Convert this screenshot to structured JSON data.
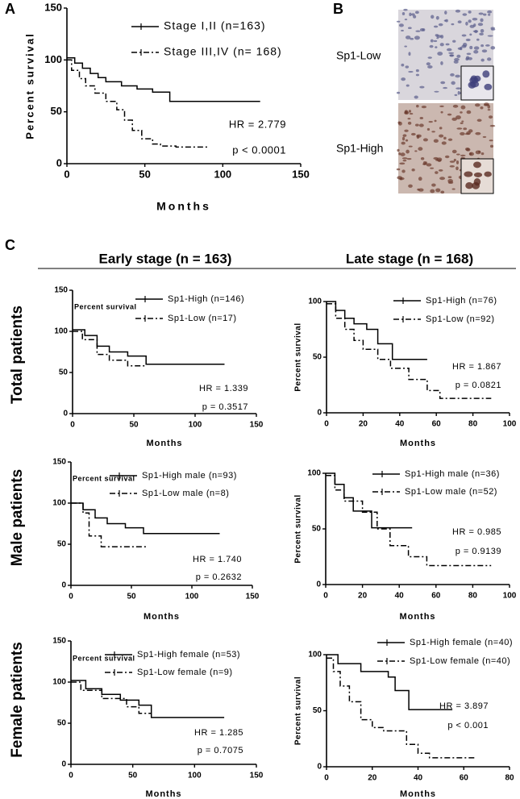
{
  "figure": {
    "panel_labels": [
      "A",
      "B",
      "C"
    ],
    "image_labels": [
      "Sp1-Low",
      "Sp1-High"
    ],
    "column_headers": [
      "Early stage (n = 163)",
      "Late stage (n = 168)"
    ],
    "row_labels": [
      "Total patients",
      "Male patients",
      "Female patients"
    ]
  },
  "chart_data": [
    {
      "type": "line",
      "x_label": "Months",
      "y_label": "Percent survival",
      "xlim": [
        0,
        150
      ],
      "xticks": [
        0,
        50,
        100,
        150
      ],
      "ylim": [
        0,
        150
      ],
      "yticks": [
        0,
        50,
        100,
        150
      ],
      "series": [
        {
          "name": "Stage I,II  (n=163)",
          "color": "#000000",
          "line_style": "solid",
          "x": [
            0,
            5,
            5,
            10,
            10,
            15,
            15,
            20,
            20,
            25,
            25,
            35,
            35,
            45,
            45,
            55,
            55,
            66,
            66,
            124
          ],
          "values": [
            102,
            102,
            97,
            97,
            92,
            92,
            87,
            87,
            83,
            83,
            79,
            79,
            75,
            75,
            72,
            72,
            69,
            69,
            60,
            60
          ]
        },
        {
          "name": "Stage III,IV  (n= 168)",
          "color": "#000000",
          "line_style": "dashdot",
          "x": [
            0,
            3,
            3,
            8,
            8,
            12,
            12,
            18,
            18,
            25,
            25,
            32,
            32,
            37,
            37,
            42,
            42,
            48,
            48,
            55,
            55,
            60,
            60,
            70,
            70,
            90
          ],
          "values": [
            100,
            100,
            90,
            90,
            82,
            82,
            75,
            75,
            68,
            68,
            60,
            60,
            52,
            52,
            42,
            42,
            32,
            32,
            24,
            24,
            19,
            19,
            17,
            17,
            16,
            16
          ]
        }
      ],
      "annotations": [
        "HR = 2.779",
        "p < 0.0001"
      ]
    },
    {
      "type": "line",
      "x_label": "Months",
      "y_label": "Percent survival",
      "xlim": [
        0,
        150
      ],
      "xticks": [
        0,
        50,
        100,
        150
      ],
      "ylim": [
        0,
        150
      ],
      "yticks": [
        0,
        50,
        100,
        150
      ],
      "series": [
        {
          "name": "Sp1-High (n=146)",
          "color": "#000000",
          "line_style": "solid",
          "x": [
            0,
            10,
            10,
            20,
            20,
            30,
            30,
            45,
            45,
            60,
            60,
            124
          ],
          "values": [
            102,
            102,
            95,
            95,
            82,
            82,
            75,
            75,
            70,
            70,
            60,
            60
          ]
        },
        {
          "name": "Sp1-Low (n=17)",
          "color": "#000000",
          "line_style": "dashdot",
          "x": [
            0,
            8,
            8,
            20,
            20,
            30,
            30,
            45,
            45,
            60
          ],
          "values": [
            100,
            100,
            90,
            90,
            72,
            72,
            65,
            65,
            58,
            58
          ]
        }
      ],
      "annotations": [
        "HR = 1.339",
        "p = 0.3517"
      ]
    },
    {
      "type": "line",
      "x_label": "Months",
      "y_label": "Percent survival",
      "xlim": [
        0,
        100
      ],
      "xticks": [
        0,
        20,
        40,
        60,
        80,
        100
      ],
      "ylim": [
        0,
        100
      ],
      "yticks": [
        0,
        50,
        100
      ],
      "series": [
        {
          "name": "Sp1-High (n=76)",
          "color": "#000000",
          "line_style": "solid",
          "x": [
            0,
            5,
            5,
            10,
            10,
            15,
            15,
            22,
            22,
            28,
            28,
            36,
            36,
            55
          ],
          "values": [
            100,
            100,
            92,
            92,
            85,
            85,
            80,
            80,
            75,
            75,
            62,
            62,
            48,
            48
          ]
        },
        {
          "name": "Sp1-Low (n=92)",
          "color": "#000000",
          "line_style": "dashdot",
          "x": [
            0,
            5,
            5,
            10,
            10,
            15,
            15,
            20,
            20,
            28,
            28,
            35,
            35,
            45,
            45,
            55,
            55,
            62,
            62,
            90
          ],
          "values": [
            98,
            98,
            85,
            85,
            75,
            75,
            65,
            65,
            57,
            57,
            48,
            48,
            40,
            40,
            30,
            30,
            20,
            20,
            13,
            13
          ]
        }
      ],
      "annotations": [
        "HR = 1.867",
        "p = 0.0821"
      ]
    },
    {
      "type": "line",
      "x_label": "Months",
      "y_label": "Percent survival",
      "xlim": [
        0,
        150
      ],
      "xticks": [
        0,
        50,
        100,
        150
      ],
      "ylim": [
        0,
        150
      ],
      "yticks": [
        0,
        50,
        100,
        150
      ],
      "series": [
        {
          "name": "Sp1-High male (n=93)",
          "color": "#000000",
          "line_style": "solid",
          "x": [
            0,
            10,
            10,
            20,
            20,
            30,
            30,
            45,
            45,
            60,
            60,
            123
          ],
          "values": [
            100,
            100,
            92,
            92,
            82,
            82,
            75,
            75,
            70,
            70,
            63,
            63
          ]
        },
        {
          "name": "Sp1-Low male (n=8)",
          "color": "#000000",
          "line_style": "dashdot",
          "x": [
            0,
            10,
            10,
            15,
            15,
            25,
            25,
            62
          ],
          "values": [
            100,
            100,
            88,
            88,
            60,
            60,
            47,
            47
          ]
        }
      ],
      "annotations": [
        "HR = 1.740",
        "p = 0.2632"
      ]
    },
    {
      "type": "line",
      "x_label": "Months",
      "y_label": "Percent survival",
      "xlim": [
        0,
        100
      ],
      "xticks": [
        0,
        20,
        40,
        60,
        80,
        100
      ],
      "ylim": [
        0,
        100
      ],
      "yticks": [
        0,
        50,
        100
      ],
      "series": [
        {
          "name": "Sp1-High male (n=36)",
          "color": "#000000",
          "line_style": "solid",
          "x": [
            0,
            5,
            5,
            10,
            10,
            15,
            15,
            25,
            25,
            47
          ],
          "values": [
            100,
            100,
            90,
            90,
            78,
            78,
            66,
            66,
            51,
            51
          ]
        },
        {
          "name": "Sp1-Low male (n=52)",
          "color": "#000000",
          "line_style": "dashdot",
          "x": [
            0,
            5,
            5,
            10,
            10,
            20,
            20,
            28,
            28,
            35,
            35,
            45,
            45,
            55,
            55,
            90
          ],
          "values": [
            98,
            98,
            85,
            85,
            75,
            75,
            65,
            65,
            50,
            50,
            35,
            35,
            25,
            25,
            17,
            17
          ]
        }
      ],
      "annotations": [
        "HR = 0.985",
        "p = 0.9139"
      ]
    },
    {
      "type": "line",
      "x_label": "Months",
      "y_label": "Percent survival",
      "xlim": [
        0,
        150
      ],
      "xticks": [
        0,
        50,
        100,
        150
      ],
      "ylim": [
        0,
        150
      ],
      "yticks": [
        0,
        50,
        100,
        150
      ],
      "series": [
        {
          "name": "Sp1-High female (n=53)",
          "color": "#000000",
          "line_style": "solid",
          "x": [
            0,
            12,
            12,
            25,
            25,
            40,
            40,
            55,
            55,
            65,
            65,
            124
          ],
          "values": [
            102,
            102,
            92,
            92,
            85,
            85,
            78,
            78,
            72,
            72,
            57,
            57
          ]
        },
        {
          "name": "Sp1-Low female (n=9)",
          "color": "#000000",
          "line_style": "dashdot",
          "x": [
            0,
            8,
            8,
            25,
            25,
            45,
            45,
            55,
            55,
            65
          ],
          "values": [
            100,
            100,
            90,
            90,
            80,
            80,
            70,
            70,
            62,
            62
          ]
        }
      ],
      "annotations": [
        "HR = 1.285",
        "p = 0.7075"
      ]
    },
    {
      "type": "line",
      "x_label": "Months",
      "y_label": "Percent survival",
      "xlim": [
        0,
        80
      ],
      "xticks": [
        0,
        20,
        40,
        60,
        80
      ],
      "ylim": [
        0,
        100
      ],
      "yticks": [
        0,
        50,
        100
      ],
      "series": [
        {
          "name": "Sp1-High female (n=40)",
          "color": "#000000",
          "line_style": "solid",
          "x": [
            0,
            5,
            5,
            15,
            15,
            27,
            27,
            30,
            30,
            36,
            36,
            55
          ],
          "values": [
            100,
            100,
            92,
            92,
            85,
            85,
            80,
            80,
            68,
            68,
            51,
            51
          ]
        },
        {
          "name": "Sp1-Low female (n=40)",
          "color": "#000000",
          "line_style": "dashdot",
          "x": [
            0,
            3,
            3,
            6,
            6,
            10,
            10,
            15,
            15,
            20,
            20,
            25,
            25,
            35,
            35,
            40,
            40,
            45,
            45,
            48,
            48,
            65
          ],
          "values": [
            97,
            97,
            85,
            85,
            72,
            72,
            58,
            58,
            42,
            42,
            35,
            35,
            32,
            32,
            20,
            20,
            12,
            12,
            8,
            8,
            8,
            8
          ]
        }
      ],
      "annotations": [
        "HR = 3.897",
        "p < 0.001"
      ]
    }
  ]
}
